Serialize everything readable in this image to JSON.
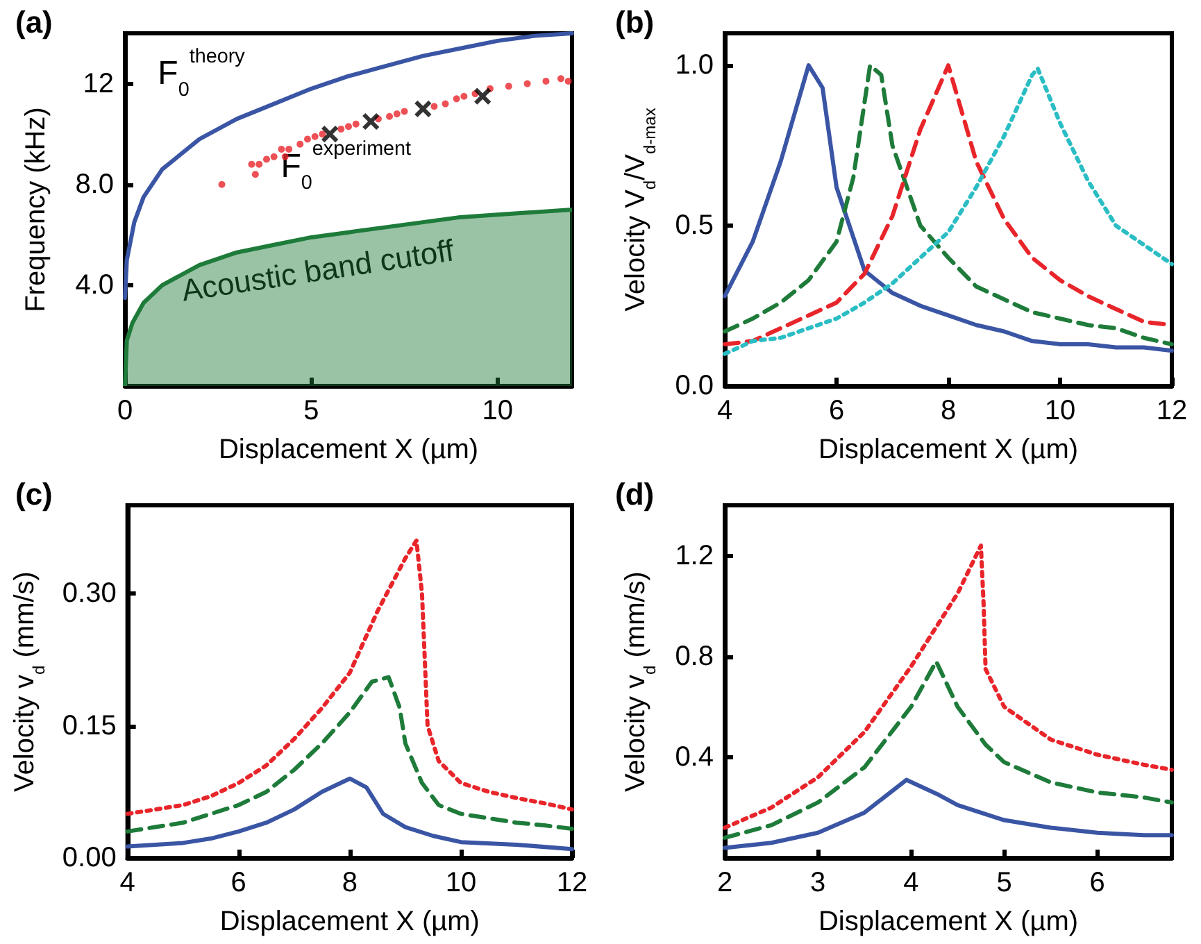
{
  "chart_data": [
    {
      "type": "line",
      "title": "(a)",
      "xlabel": "Displacement X (µm)",
      "ylabel": "Frequency (kHz)",
      "xlim": [
        0,
        12
      ],
      "ylim": [
        0,
        14
      ],
      "xticks": [
        0,
        5,
        10
      ],
      "yticks": [
        {
          "value": 4,
          "label": "4.0"
        },
        {
          "value": 8,
          "label": "8.0"
        },
        12
      ],
      "grid": false,
      "marker": "none",
      "series": [
        {
          "type": "area",
          "name": "Acoustic band cutoff",
          "color": "#1e7b3a",
          "x": [
            0,
            0.05,
            0.2,
            0.5,
            1,
            2,
            3,
            4,
            5,
            6,
            7,
            8,
            9,
            10,
            11,
            12
          ],
          "values": [
            0,
            1.8,
            2.5,
            3.3,
            4.0,
            4.8,
            5.3,
            5.6,
            5.9,
            6.1,
            6.3,
            6.5,
            6.7,
            6.8,
            6.9,
            7.0
          ]
        },
        {
          "name": "F$_{0}$$^{theory}$",
          "color": "#3a55a4",
          "line_style": "solid",
          "x": [
            0,
            0.05,
            0.25,
            0.5,
            1,
            2,
            3,
            4,
            5,
            6,
            7,
            8,
            9,
            10,
            11,
            12
          ],
          "values": [
            3.5,
            5.0,
            6.5,
            7.5,
            8.6,
            9.8,
            10.6,
            11.2,
            11.8,
            12.3,
            12.7,
            13.1,
            13.4,
            13.7,
            13.9,
            14.0
          ]
        },
        {
          "type": "scatter",
          "name": "F$_{0}$$^{experiment}$",
          "color": "#e8252a",
          "marker": "circle",
          "x": [
            2.6,
            3.4,
            3.5,
            3.6,
            3.8,
            4.0,
            4.2,
            4.3,
            4.4,
            4.7,
            4.9,
            5.1,
            5.3,
            5.8,
            6.0,
            6.2,
            6.8,
            7.1,
            7.3,
            7.5,
            7.9,
            8.3,
            8.6,
            8.9,
            9.1,
            9.4,
            9.8,
            10.3,
            10.8,
            11.3,
            11.7,
            11.9
          ],
          "values": [
            8.0,
            8.8,
            8.4,
            8.8,
            9.0,
            9.1,
            9.4,
            9.1,
            9.4,
            9.6,
            9.8,
            9.9,
            10.0,
            10.2,
            10.3,
            10.4,
            10.6,
            10.7,
            10.8,
            10.9,
            null,
            11.1,
            11.2,
            11.4,
            11.5,
            11.6,
            11.8,
            11.9,
            12.0,
            12.1,
            12.2,
            12.1
          ]
        },
        {
          "type": "scatter",
          "color": "#000000",
          "marker": "cross",
          "x": [
            5.5,
            6.6,
            8.0,
            9.6
          ],
          "values": [
            10.0,
            10.5,
            11.0,
            11.5
          ]
        }
      ]
    },
    {
      "type": "line",
      "title": "(b)",
      "xlabel": "Displacement X (µm)",
      "ylabel": "Velocity V$_{d}$/V$_{d-max}$",
      "xlim": [
        4,
        12
      ],
      "ylim": [
        0,
        1.1
      ],
      "xticks": [
        4,
        6,
        8,
        10,
        12
      ],
      "yticks": [
        {
          "value": 0,
          "label": "0.0"
        },
        {
          "value": 0.5,
          "label": "0.5"
        },
        {
          "value": 1,
          "label": "1.0"
        }
      ],
      "grid": false,
      "marker": "none",
      "series": [
        {
          "color": "#3a55a4",
          "line_style": "solid",
          "x": [
            4,
            4.5,
            5,
            5.5,
            5.75,
            6,
            6.5,
            7,
            7.5,
            8,
            8.5,
            9,
            9.5,
            10,
            10.5,
            11,
            11.5,
            12
          ],
          "values": [
            0.28,
            0.45,
            0.7,
            1.0,
            0.93,
            0.62,
            0.36,
            0.29,
            0.25,
            0.22,
            0.19,
            0.17,
            0.14,
            0.13,
            0.13,
            0.12,
            0.12,
            0.11
          ]
        },
        {
          "color": "#1e7b3a",
          "line_style": "dashed",
          "x": [
            4,
            4.5,
            5,
            5.5,
            6,
            6.3,
            6.6,
            6.8,
            7,
            7.5,
            8,
            8.5,
            9,
            9.5,
            10,
            10.5,
            11,
            11.5,
            12
          ],
          "values": [
            0.17,
            0.21,
            0.26,
            0.33,
            0.45,
            0.65,
            1.0,
            0.97,
            0.75,
            0.5,
            0.4,
            0.31,
            0.27,
            0.23,
            0.21,
            0.19,
            0.18,
            0.15,
            0.13
          ]
        },
        {
          "color": "#e8252a",
          "line_style": "dashed",
          "x": [
            4,
            4.5,
            5,
            5.5,
            6,
            6.5,
            7,
            7.5,
            8,
            8.5,
            9,
            9.5,
            10,
            10.5,
            11,
            11.5,
            12
          ],
          "values": [
            0.13,
            0.14,
            0.18,
            0.22,
            0.26,
            0.35,
            0.53,
            0.8,
            1.0,
            0.7,
            0.52,
            0.4,
            0.33,
            0.28,
            0.24,
            0.2,
            0.19
          ]
        },
        {
          "color": "#2bbdc4",
          "line_style": "dotted",
          "x": [
            4,
            4.5,
            5,
            5.5,
            6,
            6.5,
            7,
            7.5,
            8,
            8.5,
            9,
            9.5,
            9.6,
            10,
            10.5,
            11,
            11.5,
            12
          ],
          "values": [
            0.1,
            0.14,
            0.15,
            0.18,
            0.21,
            0.26,
            0.32,
            0.4,
            0.48,
            0.62,
            0.78,
            0.97,
            0.99,
            0.82,
            0.64,
            0.5,
            0.44,
            0.38
          ]
        }
      ]
    },
    {
      "type": "line",
      "title": "(c)",
      "xlabel": "Displacement X (µm)",
      "ylabel": "Velocity v$_{d}$ (mm/s)",
      "xlim": [
        4,
        12
      ],
      "ylim": [
        0,
        0.4
      ],
      "xticks": [
        4,
        6,
        8,
        10,
        12
      ],
      "yticks": [
        {
          "value": 0,
          "label": "0.00"
        },
        {
          "value": 0.15,
          "label": "0.15"
        },
        {
          "value": 0.3,
          "label": "0.30"
        }
      ],
      "grid": false,
      "marker": "none",
      "series": [
        {
          "color": "#e8252a",
          "line_style": "dotted",
          "x": [
            4,
            4.5,
            5,
            5.5,
            6,
            6.5,
            7,
            7.5,
            8,
            8.5,
            9,
            9.2,
            9.3,
            9.4,
            9.6,
            10,
            10.5,
            11,
            11.5,
            12
          ],
          "values": [
            0.05,
            0.055,
            0.06,
            0.07,
            0.085,
            0.105,
            0.135,
            0.17,
            0.21,
            0.28,
            0.34,
            0.36,
            0.3,
            0.15,
            0.11,
            0.085,
            0.075,
            0.068,
            0.062,
            0.055
          ]
        },
        {
          "color": "#1e7b3a",
          "line_style": "dashed",
          "x": [
            4,
            4.5,
            5,
            5.5,
            6,
            6.5,
            7,
            7.5,
            8,
            8.4,
            8.7,
            8.9,
            9,
            9.3,
            9.6,
            10,
            10.5,
            11,
            11.5,
            12
          ],
          "values": [
            0.03,
            0.035,
            0.04,
            0.05,
            0.06,
            0.075,
            0.1,
            0.13,
            0.165,
            0.2,
            0.205,
            0.17,
            0.13,
            0.085,
            0.06,
            0.05,
            0.045,
            0.04,
            0.037,
            0.033
          ]
        },
        {
          "color": "#3a55a4",
          "line_style": "solid",
          "x": [
            4,
            5,
            5.5,
            6,
            6.5,
            7,
            7.5,
            8,
            8.3,
            8.6,
            9,
            9.5,
            10,
            11,
            12
          ],
          "values": [
            0.013,
            0.017,
            0.022,
            0.03,
            0.04,
            0.055,
            0.075,
            0.09,
            0.08,
            0.05,
            0.035,
            0.025,
            0.018,
            0.015,
            0.01
          ]
        }
      ]
    },
    {
      "type": "line",
      "title": "(d)",
      "xlabel": "Displacement X (µm)",
      "ylabel": "Velocity v$_{d}$ (mm/s)",
      "xlim": [
        2,
        6.8
      ],
      "ylim": [
        0,
        1.4
      ],
      "xticks": [
        2,
        3,
        4,
        5,
        6
      ],
      "yticks": [
        0.4,
        0.8,
        1.2
      ],
      "grid": false,
      "marker": "none",
      "series": [
        {
          "color": "#e8252a",
          "line_style": "dotted",
          "x": [
            2,
            2.5,
            3,
            3.5,
            4,
            4.5,
            4.75,
            4.78,
            4.8,
            5,
            5.5,
            6,
            6.5,
            6.8
          ],
          "values": [
            0.12,
            0.2,
            0.32,
            0.5,
            0.76,
            1.05,
            1.24,
            1.0,
            0.75,
            0.6,
            0.47,
            0.41,
            0.37,
            0.35
          ]
        },
        {
          "color": "#1e7b3a",
          "line_style": "dashed",
          "x": [
            2,
            2.5,
            3,
            3.5,
            4,
            4.27,
            4.5,
            4.8,
            5,
            5.5,
            6,
            6.5,
            6.8
          ],
          "values": [
            0.08,
            0.13,
            0.22,
            0.36,
            0.6,
            0.78,
            0.6,
            0.45,
            0.38,
            0.3,
            0.26,
            0.24,
            0.22
          ]
        },
        {
          "color": "#3a55a4",
          "line_style": "solid",
          "x": [
            2,
            2.5,
            3,
            3.5,
            3.95,
            4.3,
            4.5,
            5,
            5.5,
            6,
            6.5,
            6.8
          ],
          "values": [
            0.04,
            0.06,
            0.1,
            0.18,
            0.31,
            0.25,
            0.21,
            0.15,
            0.12,
            0.1,
            0.09,
            0.09
          ]
        }
      ]
    }
  ]
}
